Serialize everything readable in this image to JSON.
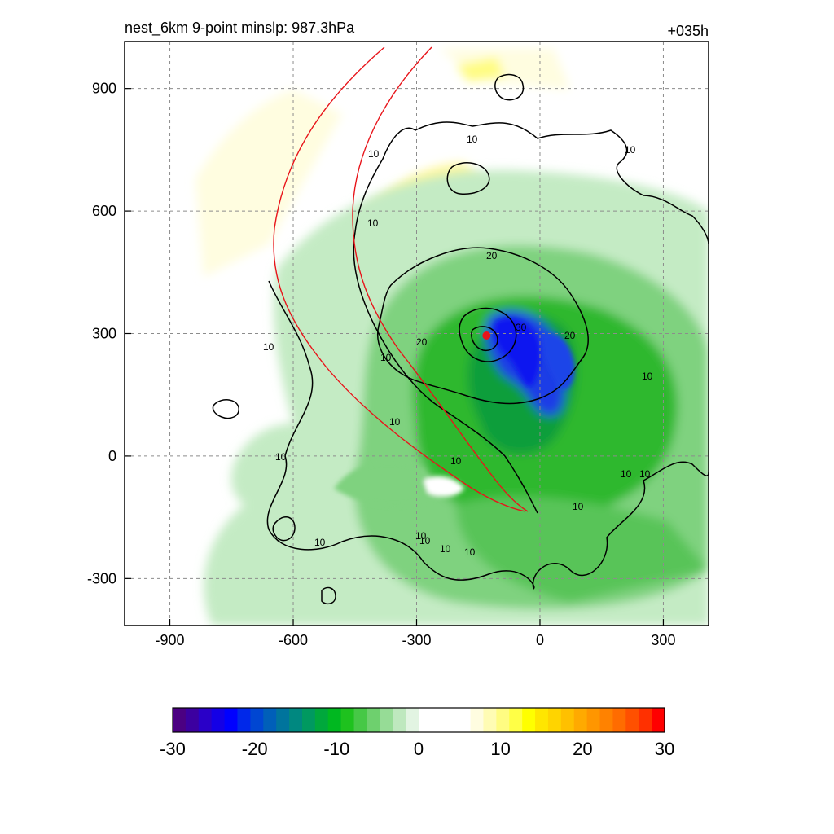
{
  "chart_data": {
    "type": "heatmap",
    "title_left": "nest_6km  9-point minslp: 987.3hPa",
    "title_right": "+035h",
    "x_ticks": [
      -900,
      -600,
      -300,
      0,
      300
    ],
    "y_ticks": [
      900,
      600,
      300,
      0,
      -300
    ],
    "xlim": [
      -1010,
      410
    ],
    "ylim": [
      -415,
      1015
    ],
    "grid": true,
    "colorbar": {
      "orientation": "horizontal",
      "position": "bottom",
      "range": [
        -30,
        30
      ],
      "ticks": [
        "-30",
        "-20",
        "-10",
        "0",
        "10",
        "20",
        "30"
      ],
      "colors": [
        "#4b0082",
        "#3c00a0",
        "#2a00c8",
        "#1400e6",
        "#0000ff",
        "#0028ea",
        "#0046d2",
        "#005fb9",
        "#00749d",
        "#008880",
        "#009960",
        "#00a83c",
        "#00b820",
        "#1ec21e",
        "#46c846",
        "#6ed06e",
        "#96dc96",
        "#bee8be",
        "#e2f4e2",
        "#ffffff",
        "#ffffff",
        "#ffffff",
        "#ffffff",
        "#fffde0",
        "#fffcb4",
        "#fffc82",
        "#ffff46",
        "#ffff00",
        "#ffe600",
        "#ffd400",
        "#ffc000",
        "#ffaa00",
        "#ff9600",
        "#ff8200",
        "#ff6c00",
        "#ff5000",
        "#ff3000",
        "#ff0000"
      ]
    },
    "contour_levels": [
      "10",
      "20",
      "30"
    ],
    "contour_label_values": [
      "10",
      "10",
      "10",
      "10",
      "10",
      "10",
      "10",
      "10",
      "10",
      "10",
      "10",
      "20",
      "20",
      "20",
      "30",
      "10",
      "10",
      "10",
      "10",
      "10",
      "10",
      "10"
    ],
    "storm_center": {
      "x": -130,
      "y": 295
    },
    "track_color": "#e8141a"
  }
}
